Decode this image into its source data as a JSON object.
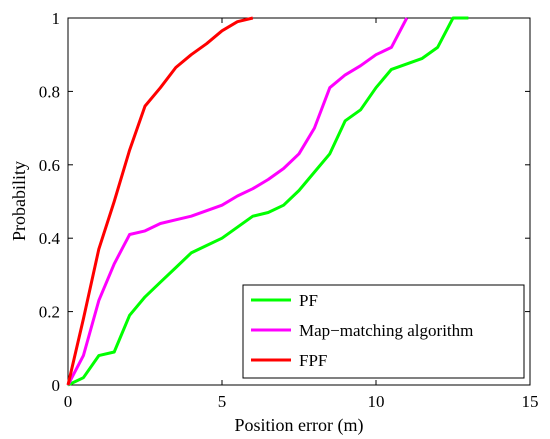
{
  "chart_data": {
    "type": "line",
    "xlabel": "Position error (m)",
    "ylabel": "Probability",
    "xlim": [
      0,
      15
    ],
    "ylim": [
      0,
      1
    ],
    "xticks": [
      0,
      5,
      10,
      15
    ],
    "yticks": [
      0,
      0.2,
      0.4,
      0.6,
      0.8,
      1
    ],
    "xtick_labels": [
      "0",
      "5",
      "10",
      "15"
    ],
    "ytick_labels": [
      "0",
      "0.2",
      "0.4",
      "0.6",
      "0.8",
      "1"
    ],
    "grid": false,
    "legend_position": "bottom-right",
    "series": [
      {
        "name": "PF",
        "color": "#00ff00",
        "x": [
          0,
          0.5,
          1,
          1.5,
          2,
          2.5,
          3,
          3.5,
          4,
          4.5,
          5,
          5.5,
          6,
          6.5,
          7,
          7.5,
          8,
          8.5,
          9,
          9.5,
          10,
          10.5,
          11,
          11.5,
          12,
          12.5,
          13
        ],
        "y": [
          0,
          0.02,
          0.08,
          0.09,
          0.19,
          0.24,
          0.28,
          0.32,
          0.36,
          0.38,
          0.4,
          0.43,
          0.46,
          0.47,
          0.49,
          0.53,
          0.58,
          0.63,
          0.72,
          0.75,
          0.81,
          0.86,
          0.875,
          0.89,
          0.92,
          1.0,
          1.0
        ]
      },
      {
        "name": "Map−matching algorithm",
        "color": "#ff00ff",
        "x": [
          0,
          0.5,
          1,
          1.5,
          2,
          2.5,
          3,
          3.5,
          4,
          4.5,
          5,
          5.5,
          6,
          6.5,
          7,
          7.5,
          8,
          8.5,
          9,
          9.5,
          10,
          10.5,
          11
        ],
        "y": [
          0,
          0.08,
          0.23,
          0.33,
          0.41,
          0.42,
          0.44,
          0.45,
          0.46,
          0.475,
          0.49,
          0.515,
          0.535,
          0.56,
          0.59,
          0.63,
          0.7,
          0.81,
          0.845,
          0.87,
          0.9,
          0.92,
          1.0
        ]
      },
      {
        "name": "FPF",
        "color": "#ff0000",
        "x": [
          0,
          0.5,
          1,
          1.5,
          2,
          2.5,
          3,
          3.5,
          4,
          4.5,
          5,
          5.5,
          6
        ],
        "y": [
          0,
          0.18,
          0.37,
          0.5,
          0.64,
          0.76,
          0.81,
          0.865,
          0.9,
          0.93,
          0.965,
          0.99,
          1.0
        ]
      }
    ]
  }
}
